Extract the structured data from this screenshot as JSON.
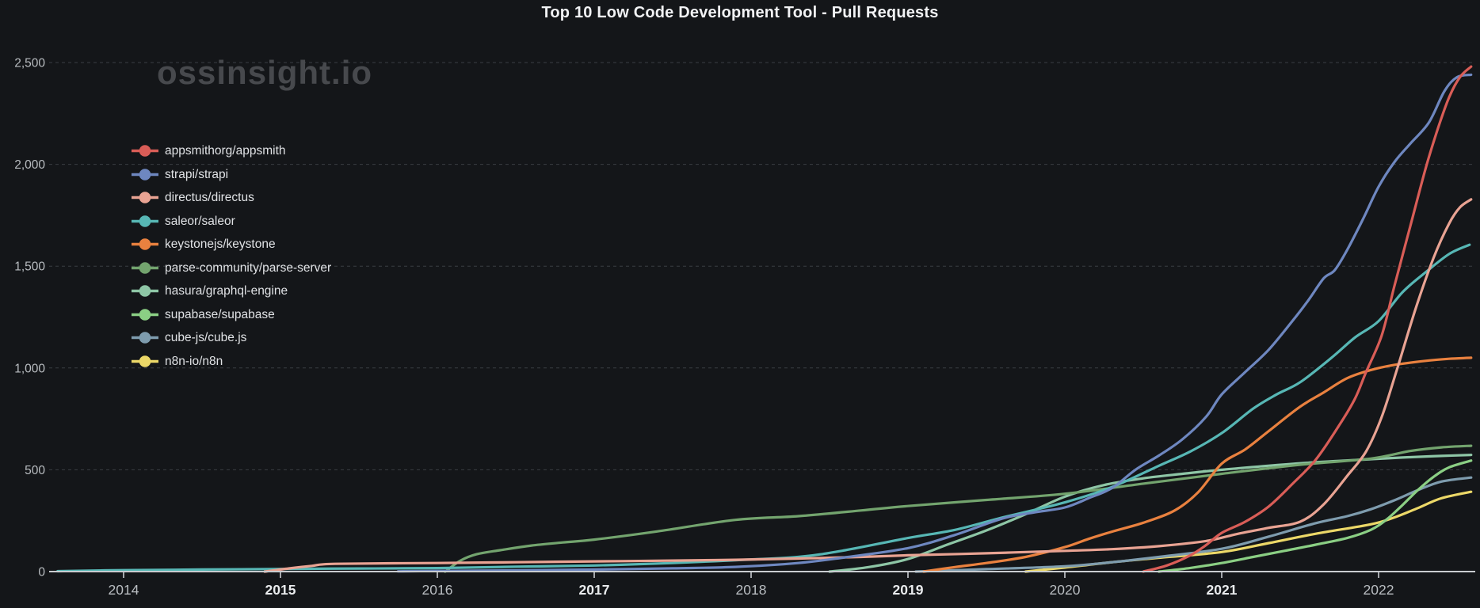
{
  "watermark": "ossinsight.io",
  "colors": {
    "background": "#141619",
    "title_text": "#f2f3f5",
    "watermark_text": "#47494d",
    "axis": "#c9ccd0",
    "grid": "#3a3e42",
    "tick_label": "#b9bdc1",
    "tick_label_bold": "#e9ebed",
    "legend_label": "#e0e2e5"
  },
  "chart_data": {
    "type": "line",
    "title": "Top 10 Low Code Development Tool - Pull Requests",
    "xlabel": "",
    "ylabel": "",
    "grid": "dashed horizontal",
    "legend_position": "left-inside",
    "x_range_years": [
      2013.55,
      2022.62
    ],
    "ylim": [
      0,
      2600
    ],
    "y_axis_ticks": [
      {
        "value": 0,
        "label": "0"
      },
      {
        "value": 500,
        "label": "500"
      },
      {
        "value": 1000,
        "label": "1,000"
      },
      {
        "value": 1500,
        "label": "1,500"
      },
      {
        "value": 2000,
        "label": "2,000"
      },
      {
        "value": 2500,
        "label": "2,500"
      }
    ],
    "x_axis_ticks": [
      {
        "year": 2014,
        "label": "2014",
        "bold": false
      },
      {
        "year": 2015,
        "label": "2015",
        "bold": true
      },
      {
        "year": 2016,
        "label": "2016",
        "bold": false
      },
      {
        "year": 2017,
        "label": "2017",
        "bold": true
      },
      {
        "year": 2018,
        "label": "2018",
        "bold": false
      },
      {
        "year": 2019,
        "label": "2019",
        "bold": true
      },
      {
        "year": 2020,
        "label": "2020",
        "bold": false
      },
      {
        "year": 2021,
        "label": "2021",
        "bold": true
      },
      {
        "year": 2022,
        "label": "2022",
        "bold": false
      }
    ],
    "series": [
      {
        "name": "appsmithorg/appsmith",
        "id": "appsmith",
        "color": "#d95d57",
        "points": [
          [
            2020.5,
            0
          ],
          [
            2020.65,
            30
          ],
          [
            2020.8,
            80
          ],
          [
            2020.9,
            130
          ],
          [
            2021,
            190
          ],
          [
            2021.15,
            245
          ],
          [
            2021.3,
            320
          ],
          [
            2021.45,
            430
          ],
          [
            2021.6,
            550
          ],
          [
            2021.75,
            720
          ],
          [
            2021.85,
            850
          ],
          [
            2021.92,
            980
          ],
          [
            2022.02,
            1160
          ],
          [
            2022.1,
            1400
          ],
          [
            2022.2,
            1690
          ],
          [
            2022.3,
            1980
          ],
          [
            2022.38,
            2180
          ],
          [
            2022.45,
            2330
          ],
          [
            2022.52,
            2430
          ],
          [
            2022.59,
            2480
          ]
        ]
      },
      {
        "name": "strapi/strapi",
        "id": "strapi",
        "color": "#6e87c0",
        "points": [
          [
            2015.75,
            1
          ],
          [
            2016,
            3
          ],
          [
            2016.5,
            6
          ],
          [
            2017,
            10
          ],
          [
            2017.5,
            16
          ],
          [
            2017.9,
            23
          ],
          [
            2018.3,
            42
          ],
          [
            2018.6,
            70
          ],
          [
            2019,
            115
          ],
          [
            2019.3,
            180
          ],
          [
            2019.6,
            260
          ],
          [
            2019.8,
            290
          ],
          [
            2020,
            315
          ],
          [
            2020.15,
            360
          ],
          [
            2020.3,
            410
          ],
          [
            2020.45,
            500
          ],
          [
            2020.6,
            570
          ],
          [
            2020.75,
            650
          ],
          [
            2020.9,
            760
          ],
          [
            2021,
            870
          ],
          [
            2021.15,
            980
          ],
          [
            2021.3,
            1090
          ],
          [
            2021.45,
            1230
          ],
          [
            2021.55,
            1330
          ],
          [
            2021.65,
            1440
          ],
          [
            2021.72,
            1480
          ],
          [
            2021.8,
            1580
          ],
          [
            2021.9,
            1730
          ],
          [
            2022,
            1890
          ],
          [
            2022.1,
            2010
          ],
          [
            2022.2,
            2100
          ],
          [
            2022.32,
            2205
          ],
          [
            2022.42,
            2360
          ],
          [
            2022.5,
            2428
          ],
          [
            2022.59,
            2440
          ]
        ]
      },
      {
        "name": "directus/directus",
        "id": "directus",
        "color": "#e9a393",
        "points": [
          [
            2014.9,
            0
          ],
          [
            2015.05,
            15
          ],
          [
            2015.2,
            28
          ],
          [
            2015.35,
            38
          ],
          [
            2016,
            42
          ],
          [
            2016.5,
            46
          ],
          [
            2017,
            50
          ],
          [
            2017.5,
            54
          ],
          [
            2017.9,
            58
          ],
          [
            2018.3,
            64
          ],
          [
            2018.7,
            72
          ],
          [
            2019,
            80
          ],
          [
            2019.5,
            90
          ],
          [
            2020,
            102
          ],
          [
            2020.3,
            110
          ],
          [
            2020.6,
            125
          ],
          [
            2020.9,
            150
          ],
          [
            2021.1,
            185
          ],
          [
            2021.3,
            215
          ],
          [
            2021.5,
            245
          ],
          [
            2021.65,
            330
          ],
          [
            2021.8,
            470
          ],
          [
            2021.92,
            590
          ],
          [
            2022.02,
            760
          ],
          [
            2022.12,
            1000
          ],
          [
            2022.24,
            1300
          ],
          [
            2022.35,
            1540
          ],
          [
            2022.45,
            1710
          ],
          [
            2022.52,
            1790
          ],
          [
            2022.59,
            1828
          ]
        ]
      },
      {
        "name": "saleor/saleor",
        "id": "saleor",
        "color": "#57b7b5",
        "points": [
          [
            2013.58,
            2
          ],
          [
            2014,
            7
          ],
          [
            2014.5,
            10
          ],
          [
            2015,
            13
          ],
          [
            2015.5,
            15
          ],
          [
            2016,
            17
          ],
          [
            2016.5,
            24
          ],
          [
            2017,
            30
          ],
          [
            2017.5,
            42
          ],
          [
            2017.9,
            56
          ],
          [
            2018.3,
            72
          ],
          [
            2018.6,
            105
          ],
          [
            2019,
            165
          ],
          [
            2019.3,
            205
          ],
          [
            2019.6,
            265
          ],
          [
            2020,
            340
          ],
          [
            2020.3,
            415
          ],
          [
            2020.6,
            520
          ],
          [
            2020.8,
            590
          ],
          [
            2021,
            680
          ],
          [
            2021.2,
            800
          ],
          [
            2021.35,
            870
          ],
          [
            2021.5,
            930
          ],
          [
            2021.7,
            1050
          ],
          [
            2021.85,
            1150
          ],
          [
            2022,
            1230
          ],
          [
            2022.15,
            1370
          ],
          [
            2022.3,
            1470
          ],
          [
            2022.45,
            1560
          ],
          [
            2022.58,
            1605
          ]
        ]
      },
      {
        "name": "keystonejs/keystone",
        "id": "keystone",
        "color": "#e9813f",
        "points": [
          [
            2019.1,
            0
          ],
          [
            2019.3,
            22
          ],
          [
            2019.5,
            42
          ],
          [
            2019.75,
            72
          ],
          [
            2020,
            120
          ],
          [
            2020.15,
            160
          ],
          [
            2020.3,
            196
          ],
          [
            2020.5,
            240
          ],
          [
            2020.7,
            300
          ],
          [
            2020.85,
            390
          ],
          [
            2021,
            530
          ],
          [
            2021.15,
            600
          ],
          [
            2021.3,
            690
          ],
          [
            2021.5,
            810
          ],
          [
            2021.65,
            880
          ],
          [
            2021.8,
            950
          ],
          [
            2021.95,
            990
          ],
          [
            2022.1,
            1015
          ],
          [
            2022.3,
            1035
          ],
          [
            2022.45,
            1045
          ],
          [
            2022.59,
            1050
          ]
        ]
      },
      {
        "name": "parse-community/parse-server",
        "id": "parse-server",
        "color": "#73a46e",
        "points": [
          [
            2016.05,
            0
          ],
          [
            2016.15,
            55
          ],
          [
            2016.25,
            85
          ],
          [
            2016.4,
            105
          ],
          [
            2016.6,
            128
          ],
          [
            2016.8,
            143
          ],
          [
            2017,
            157
          ],
          [
            2017.4,
            197
          ],
          [
            2017.9,
            254
          ],
          [
            2018.3,
            272
          ],
          [
            2018.7,
            300
          ],
          [
            2019,
            322
          ],
          [
            2019.5,
            352
          ],
          [
            2020,
            382
          ],
          [
            2020.5,
            432
          ],
          [
            2021,
            480
          ],
          [
            2021.5,
            525
          ],
          [
            2021.95,
            555
          ],
          [
            2022.2,
            592
          ],
          [
            2022.4,
            610
          ],
          [
            2022.59,
            618
          ]
        ]
      },
      {
        "name": "hasura/graphql-engine",
        "id": "graphql-engine",
        "color": "#8ec6a6",
        "points": [
          [
            2018.5,
            0
          ],
          [
            2018.75,
            22
          ],
          [
            2019,
            62
          ],
          [
            2019.25,
            132
          ],
          [
            2019.5,
            202
          ],
          [
            2019.75,
            282
          ],
          [
            2020,
            368
          ],
          [
            2020.25,
            425
          ],
          [
            2020.5,
            458
          ],
          [
            2020.75,
            480
          ],
          [
            2021,
            500
          ],
          [
            2021.5,
            532
          ],
          [
            2021.95,
            552
          ],
          [
            2022.2,
            562
          ],
          [
            2022.4,
            568
          ],
          [
            2022.59,
            573
          ]
        ]
      },
      {
        "name": "supabase/supabase",
        "id": "supabase",
        "color": "#8bcf84",
        "points": [
          [
            2020.6,
            0
          ],
          [
            2020.8,
            18
          ],
          [
            2021,
            42
          ],
          [
            2021.2,
            72
          ],
          [
            2021.4,
            102
          ],
          [
            2021.6,
            132
          ],
          [
            2021.8,
            165
          ],
          [
            2021.95,
            205
          ],
          [
            2022.05,
            255
          ],
          [
            2022.15,
            325
          ],
          [
            2022.25,
            400
          ],
          [
            2022.35,
            465
          ],
          [
            2022.45,
            512
          ],
          [
            2022.59,
            545
          ]
        ]
      },
      {
        "name": "cube-js/cube.js",
        "id": "cube-js",
        "color": "#7e9cae",
        "points": [
          [
            2019.05,
            0
          ],
          [
            2019.5,
            12
          ],
          [
            2020,
            26
          ],
          [
            2020.3,
            46
          ],
          [
            2020.6,
            72
          ],
          [
            2021,
            112
          ],
          [
            2021.3,
            172
          ],
          [
            2021.6,
            238
          ],
          [
            2021.8,
            272
          ],
          [
            2021.95,
            306
          ],
          [
            2022.1,
            350
          ],
          [
            2022.25,
            400
          ],
          [
            2022.4,
            442
          ],
          [
            2022.59,
            462
          ]
        ]
      },
      {
        "name": "n8n-io/n8n",
        "id": "n8n",
        "color": "#ecd868",
        "points": [
          [
            2019.75,
            0
          ],
          [
            2020,
            20
          ],
          [
            2020.3,
            46
          ],
          [
            2020.6,
            68
          ],
          [
            2021,
            96
          ],
          [
            2021.3,
            140
          ],
          [
            2021.6,
            186
          ],
          [
            2021.95,
            232
          ],
          [
            2022.1,
            266
          ],
          [
            2022.25,
            312
          ],
          [
            2022.4,
            360
          ],
          [
            2022.59,
            392
          ]
        ]
      }
    ]
  }
}
